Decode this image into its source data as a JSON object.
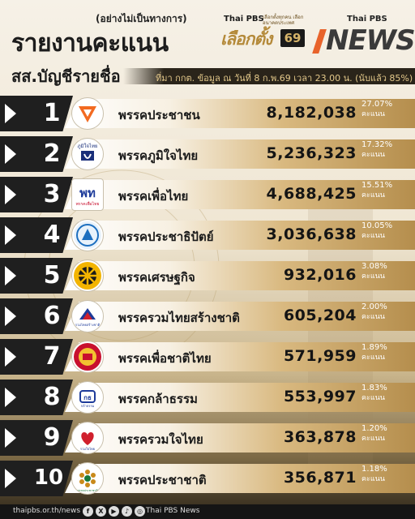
{
  "header": {
    "note": "(อย่างไม่เป็นทางการ)",
    "title": "รายงานคะแนน",
    "subtitle": "สส.บัญชีรายชื่อ",
    "election_brand": "Thai PBS",
    "election_tagline": "เลือกตั้งทุกคน เลือกอนาคตประเทศ",
    "election_title": "เลือกตั้ง",
    "election_number": "69",
    "news_brand": "Thai PBS",
    "news_title": "NEWS",
    "info": "ที่มา กกต. ข้อมูล ณ วันที่ 8 ก.พ.69 เวลา 23.00 น. (นับแล้ว 85%)"
  },
  "colors": {
    "accent_gold": "#d6b46a",
    "dark": "#1f1f1f",
    "orange": "#e8632b"
  },
  "rows": [
    {
      "rank": "1",
      "party": "พรรคประชาชน",
      "votes": "8,182,038",
      "pct": "27.07%",
      "unit": "คะแนน",
      "logo_icon": "people-party-logo"
    },
    {
      "rank": "2",
      "party": "พรรคภูมิใจไทย",
      "votes": "5,236,323",
      "pct": "17.32%",
      "unit": "คะแนน",
      "logo_icon": "bhumjaithai-logo"
    },
    {
      "rank": "3",
      "party": "พรรคเพื่อไทย",
      "votes": "4,688,425",
      "pct": "15.51%",
      "unit": "คะแนน",
      "logo_icon": "pheu-thai-logo"
    },
    {
      "rank": "4",
      "party": "พรรคประชาธิปัตย์",
      "votes": "3,036,638",
      "pct": "10.05%",
      "unit": "คะแนน",
      "logo_icon": "democrat-logo"
    },
    {
      "rank": "5",
      "party": "พรรคเศรษฐกิจ",
      "votes": "932,016",
      "pct": "3.08%",
      "unit": "คะแนน",
      "logo_icon": "economic-party-logo"
    },
    {
      "rank": "6",
      "party": "พรรครวมไทยสร้างชาติ",
      "votes": "605,204",
      "pct": "2.00%",
      "unit": "คะแนน",
      "logo_icon": "utn-logo"
    },
    {
      "rank": "7",
      "party": "พรรคเพื่อชาติไทย",
      "votes": "571,959",
      "pct": "1.89%",
      "unit": "คะแนน",
      "logo_icon": "thai-nation-logo"
    },
    {
      "rank": "8",
      "party": "พรรคกล้าธรรม",
      "votes": "553,997",
      "pct": "1.83%",
      "unit": "คะแนน",
      "logo_icon": "kla-tham-logo"
    },
    {
      "rank": "9",
      "party": "พรรครวมใจไทย",
      "votes": "363,878",
      "pct": "1.20%",
      "unit": "คะแนน",
      "logo_icon": "ruam-jai-thai-logo"
    },
    {
      "rank": "10",
      "party": "พรรคประชาชาติ",
      "votes": "356,871",
      "pct": "1.18%",
      "unit": "คะแนน",
      "logo_icon": "prachachat-logo"
    }
  ],
  "logo_text": {
    "bhumjaithai": "ภูมิใจไทย",
    "pheu_thai_mark": "พท",
    "pheu_thai_name": "พรรคเพื่อไทย",
    "kla_tham_mark": "กธ",
    "kla_tham_name": "กล้าธรรม",
    "ruam_jai_thai_name": "รวมใจไทย",
    "utn_name": "รวมไทยสร้างชาติ",
    "prachachat_name": "พรรคประชาชาติ"
  },
  "footer": {
    "site": "thaipbs.or.th/news",
    "socials": [
      "facebook-icon",
      "x-icon",
      "youtube-icon",
      "tiktok-icon",
      "instagram-icon"
    ],
    "brand": "Thai PBS News"
  }
}
